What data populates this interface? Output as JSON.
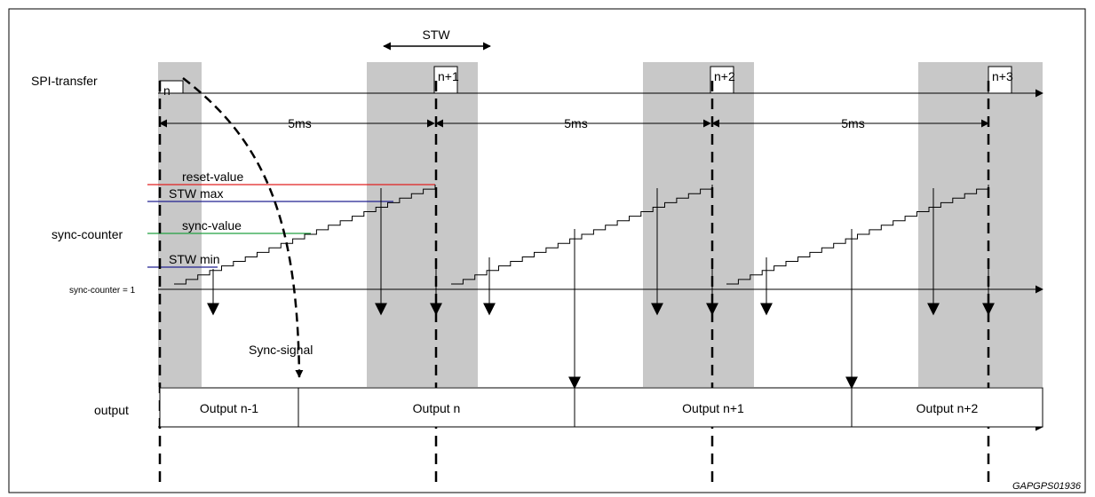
{
  "labels": {
    "stw": "STW",
    "spi_transfer": "SPI-transfer",
    "sync_counter": "sync-counter",
    "sync_counter_eq1": "sync-counter  = 1",
    "output": "output",
    "reset_value": "reset-value",
    "stw_max": "STW  max",
    "sync_value": "sync-value",
    "stw_min": "STW  min",
    "sync_signal": "Sync-signal",
    "figure_id": "GAPGPS01936"
  },
  "transfers": [
    "n",
    "n+1",
    "n+2",
    "n+3"
  ],
  "intervals": [
    "5ms",
    "5ms",
    "5ms"
  ],
  "outputs": [
    "Output n-1",
    "Output n",
    "Output n+1",
    "Output n+2"
  ],
  "colors": {
    "window_shade": "#c8c8c8",
    "reset_line": "#e02020",
    "stw_line": "#202090",
    "sync_line": "#20a040"
  }
}
